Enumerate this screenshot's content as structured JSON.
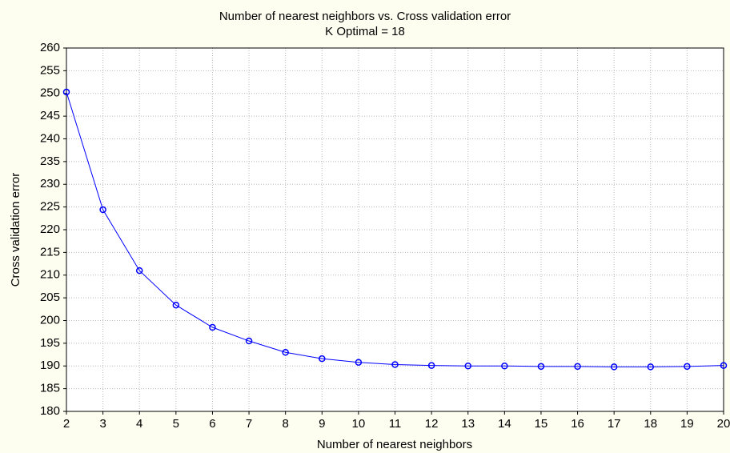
{
  "chart_data": {
    "type": "line",
    "title": "Number of nearest neighbors vs. Cross validation error",
    "subtitle": "K Optimal = 18",
    "x_label": "Number of nearest neighbors",
    "y_label": "Cross validation error",
    "x": [
      2,
      3,
      4,
      5,
      6,
      7,
      8,
      9,
      10,
      11,
      12,
      13,
      14,
      15,
      16,
      17,
      18,
      19,
      20
    ],
    "series": [
      {
        "color": "#0000ff",
        "values": [
          250.3,
          224.4,
          211.0,
          203.4,
          198.5,
          195.5,
          193.0,
          191.6,
          190.8,
          190.3,
          190.1,
          190.0,
          190.0,
          189.9,
          189.9,
          189.8,
          189.8,
          189.9,
          190.1
        ]
      }
    ],
    "xlim": [
      2,
      20
    ],
    "xticks": [
      2,
      3,
      4,
      5,
      6,
      7,
      8,
      9,
      10,
      11,
      12,
      13,
      14,
      15,
      16,
      17,
      18,
      19,
      20
    ],
    "ylim": [
      180,
      260
    ],
    "yticks": [
      180,
      185,
      190,
      195,
      200,
      205,
      210,
      215,
      220,
      225,
      230,
      235,
      240,
      245,
      250,
      255,
      260
    ],
    "grid": true
  }
}
